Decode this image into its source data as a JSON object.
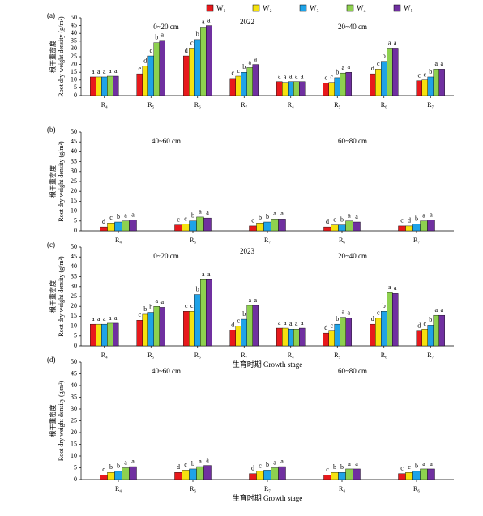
{
  "legend": [
    {
      "name": "W₁",
      "color": "#e8191c"
    },
    {
      "name": "W₂",
      "color": "#f5e20f"
    },
    {
      "name": "W₃",
      "color": "#1fa3e8"
    },
    {
      "name": "W₄",
      "color": "#8ed14f"
    },
    {
      "name": "W₅",
      "color": "#7030a0"
    }
  ],
  "chart_data": [
    {
      "type": "bar",
      "panel": "(a)",
      "title": "2022",
      "sections": [
        "0~20 cm",
        "20~40 cm"
      ],
      "ylabel": [
        "根干重密度",
        "Root dry weight density (g/m²)"
      ],
      "categories": [
        "R₄",
        "R₅",
        "R₆",
        "R₇",
        "R₄",
        "R₅",
        "R₆",
        "R₇"
      ],
      "ylim": [
        0,
        50
      ],
      "yticks": [
        0,
        5,
        10,
        15,
        20,
        25,
        30,
        35,
        40,
        45,
        50
      ],
      "series": [
        {
          "values": [
            12,
            14,
            25.5,
            11,
            9,
            8,
            14,
            9.5
          ],
          "letters": [
            "a",
            "e",
            "d",
            "c",
            "a",
            "c",
            "d",
            "c"
          ]
        },
        {
          "values": [
            12,
            19,
            30.5,
            12.5,
            8.5,
            8.5,
            17,
            10
          ],
          "letters": [
            "a",
            "d",
            "c",
            "c",
            "a",
            "c",
            "c",
            "c"
          ]
        },
        {
          "values": [
            12,
            25.5,
            36,
            15,
            9,
            11.5,
            22,
            12
          ],
          "letters": [
            "a",
            "c",
            "b",
            "b",
            "a",
            "b",
            "b",
            "b"
          ]
        },
        {
          "values": [
            12.5,
            34,
            44,
            18,
            9,
            14.5,
            30.5,
            17
          ],
          "letters": [
            "a",
            "b",
            "a",
            "a",
            "a",
            "a",
            "a",
            "a"
          ]
        },
        {
          "values": [
            12.5,
            35.5,
            45,
            20,
            9,
            15,
            30.5,
            17
          ],
          "letters": [
            "a",
            "a",
            "a",
            "a",
            "a",
            "a",
            "a",
            "a"
          ]
        }
      ]
    },
    {
      "type": "bar",
      "panel": "(b)",
      "sections": [
        "40~60 cm",
        "60~80 cm"
      ],
      "ylabel": [
        "根干重密度",
        "Root dry weight density (g/m²)"
      ],
      "categories": [
        "R₄",
        "R₆",
        "R₇",
        "R₆",
        "R₇"
      ],
      "ylim": [
        0,
        50
      ],
      "yticks": [
        0,
        5,
        10,
        15,
        20,
        25,
        30,
        35,
        40,
        45,
        50
      ],
      "series": [
        {
          "values": [
            2,
            3,
            2.5,
            2,
            2.5
          ],
          "letters": [
            "d",
            "c",
            "c",
            "d",
            "c"
          ]
        },
        {
          "values": [
            4,
            3.5,
            4,
            3,
            2.5
          ],
          "letters": [
            "c",
            "c",
            "b",
            "c",
            "d"
          ]
        },
        {
          "values": [
            4.5,
            5,
            4.5,
            3,
            3.5
          ],
          "letters": [
            "b",
            "b",
            "b",
            "b",
            "b"
          ]
        },
        {
          "values": [
            5,
            7,
            6,
            5,
            5
          ],
          "letters": [
            "a",
            "a",
            "a",
            "a",
            "a"
          ]
        },
        {
          "values": [
            5.5,
            6.5,
            6,
            4.5,
            5.5
          ],
          "letters": [
            "a",
            "a",
            "a",
            "a",
            "a"
          ]
        }
      ]
    },
    {
      "type": "bar",
      "panel": "(c)",
      "title": "2023",
      "sections": [
        "0~20 cm",
        "20~40 cm"
      ],
      "ylabel": [
        "根干重密度",
        "Root dry weight density (g/m²)"
      ],
      "xlabel": "生育时期 Growth stage",
      "categories": [
        "R₄",
        "R₅",
        "R₆",
        "R₇",
        "R₄",
        "R₅",
        "R₆",
        "R₇"
      ],
      "ylim": [
        0,
        50
      ],
      "yticks": [
        0,
        5,
        10,
        15,
        20,
        25,
        30,
        35,
        40,
        45,
        50
      ],
      "series": [
        {
          "values": [
            11,
            13,
            17.5,
            8,
            9,
            6.5,
            11,
            7.5
          ],
          "letters": [
            "a",
            "c",
            "c",
            "d",
            "a",
            "d",
            "d",
            "d"
          ]
        },
        {
          "values": [
            11,
            16,
            17.5,
            10,
            9,
            7.5,
            14,
            8.5
          ],
          "letters": [
            "a",
            "b",
            "c",
            "c",
            "a",
            "c",
            "c",
            "c"
          ]
        },
        {
          "values": [
            11,
            17,
            26,
            13.5,
            8.5,
            11,
            17.5,
            10.5
          ],
          "letters": [
            "a",
            "b",
            "b",
            "b",
            "a",
            "b",
            "b",
            "b"
          ]
        },
        {
          "values": [
            11.5,
            20,
            33.5,
            20.5,
            8.5,
            14.5,
            27,
            15.5
          ],
          "letters": [
            "a",
            "a",
            "a",
            "a",
            "a",
            "a",
            "a",
            "a"
          ]
        },
        {
          "values": [
            11.5,
            19.5,
            33.5,
            20.5,
            9,
            14,
            26.5,
            15.5
          ],
          "letters": [
            "a",
            "a",
            "a",
            "a",
            "a",
            "a",
            "a",
            "a"
          ]
        }
      ]
    },
    {
      "type": "bar",
      "panel": "(d)",
      "sections": [
        "40~60 cm",
        "60~80 cm"
      ],
      "ylabel": [
        "根干重密度",
        "Root dry weight density (g/m²)"
      ],
      "xlabel": "生育时期 Growth stage",
      "categories": [
        "R₄",
        "R₆",
        "R₇",
        "R₄",
        "R₆"
      ],
      "ylim": [
        0,
        50
      ],
      "yticks": [
        0,
        5,
        10,
        15,
        20,
        25,
        30,
        35,
        40,
        45,
        50
      ],
      "series": [
        {
          "values": [
            2,
            3,
            2.5,
            2,
            2.5
          ],
          "letters": [
            "c",
            "d",
            "d",
            "c",
            "c"
          ]
        },
        {
          "values": [
            3,
            4,
            3.5,
            3,
            3
          ],
          "letters": [
            "b",
            "c",
            "c",
            "b",
            "c"
          ]
        },
        {
          "values": [
            3.5,
            4.5,
            4,
            3,
            3.5
          ],
          "letters": [
            "b",
            "b",
            "b",
            "b",
            "b"
          ]
        },
        {
          "values": [
            5,
            5.5,
            5,
            4.5,
            4.5
          ],
          "letters": [
            "a",
            "a",
            "a",
            "a",
            "a"
          ]
        },
        {
          "values": [
            5.5,
            6,
            5.5,
            4.5,
            4.5
          ],
          "letters": [
            "a",
            "a",
            "a",
            "a",
            "a"
          ]
        }
      ]
    }
  ]
}
